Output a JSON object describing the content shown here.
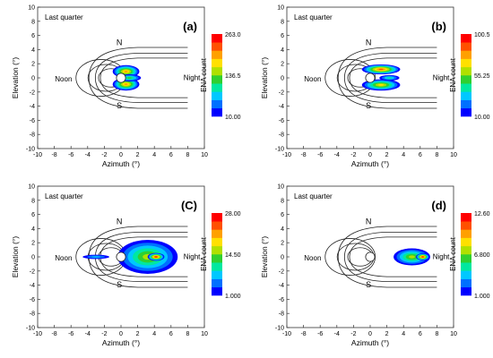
{
  "chart_data": [
    {
      "type": "heatmap",
      "panel_label": "(a)",
      "annotation": "Last quarter",
      "xlabel": "Azimuth (°)",
      "ylabel": "Elevation (°)",
      "xlim": [
        -10,
        10
      ],
      "ylim": [
        -10,
        10
      ],
      "x_ticks": [
        "-10",
        "-8",
        "-6",
        "-4",
        "-2",
        "0",
        "2",
        "4",
        "6",
        "8",
        "10"
      ],
      "y_ticks": [
        "-10",
        "-8",
        "-6",
        "-4",
        "-2",
        "0",
        "2",
        "4",
        "6",
        "8",
        "10"
      ],
      "region_labels": {
        "north": "N",
        "south": "S",
        "noon": "Noon",
        "night": "Night"
      },
      "colorbar": {
        "title": "ENA count",
        "min": 10.0,
        "mid": 136.5,
        "max": 263.0,
        "tick_labels": [
          "263.0",
          "136.5",
          "10.00"
        ]
      },
      "emission_blobs": [
        {
          "cx": 0.6,
          "cy": 0.9,
          "rx": 1.6,
          "ry": 0.9,
          "peak": 0.75
        },
        {
          "cx": 0.6,
          "cy": -0.9,
          "rx": 1.6,
          "ry": 0.9,
          "peak": 0.75
        },
        {
          "cx": 1.0,
          "cy": 0.0,
          "rx": 1.4,
          "ry": 0.5,
          "peak": 0.5
        }
      ]
    },
    {
      "type": "heatmap",
      "panel_label": "(b)",
      "annotation": "Last quarter",
      "xlabel": "Azimuth (°)",
      "ylabel": "Elevation (°)",
      "xlim": [
        -10,
        10
      ],
      "ylim": [
        -10,
        10
      ],
      "x_ticks": [
        "-10",
        "-8",
        "-6",
        "-4",
        "-2",
        "0",
        "2",
        "4",
        "6",
        "8",
        "10"
      ],
      "y_ticks": [
        "-10",
        "-8",
        "-6",
        "-4",
        "-2",
        "0",
        "2",
        "4",
        "6",
        "8",
        "10"
      ],
      "region_labels": {
        "north": "N",
        "south": "S",
        "noon": "Noon",
        "night": "Night"
      },
      "colorbar": {
        "title": "ENA count",
        "min": 10.0,
        "mid": 55.25,
        "max": 100.5,
        "tick_labels": [
          "100.5",
          "55.25",
          "10.00"
        ]
      },
      "emission_blobs": [
        {
          "cx": 1.3,
          "cy": 1.2,
          "rx": 2.3,
          "ry": 0.7,
          "peak": 0.85
        },
        {
          "cx": 1.3,
          "cy": -1.0,
          "rx": 2.3,
          "ry": 0.8,
          "peak": 0.7
        },
        {
          "cx": 2.3,
          "cy": 0.0,
          "rx": 1.2,
          "ry": 0.4,
          "peak": 0.35
        }
      ]
    },
    {
      "type": "heatmap",
      "panel_label": "(C)",
      "annotation": "Last quarter",
      "xlabel": "Azimuth (°)",
      "ylabel": "Elevation (°)",
      "xlim": [
        -10,
        10
      ],
      "ylim": [
        -10,
        10
      ],
      "x_ticks": [
        "-10",
        "-8",
        "-6",
        "-4",
        "-2",
        "0",
        "2",
        "4",
        "6",
        "8",
        "10"
      ],
      "y_ticks": [
        "-10",
        "-8",
        "-6",
        "-4",
        "-2",
        "0",
        "2",
        "4",
        "6",
        "8",
        "10"
      ],
      "region_labels": {
        "north": "N",
        "south": "S",
        "noon": "Noon",
        "night": "Night"
      },
      "colorbar": {
        "title": "ENA count",
        "min": 1.0,
        "mid": 14.5,
        "max": 28.0,
        "tick_labels": [
          "28.00",
          "14.50",
          "1.000"
        ]
      },
      "emission_blobs": [
        {
          "cx": 3.2,
          "cy": 0.0,
          "rx": 3.6,
          "ry": 2.4,
          "peak": 0.55
        },
        {
          "cx": 4.2,
          "cy": 0.0,
          "rx": 1.0,
          "ry": 0.55,
          "peak": 1.0
        },
        {
          "cx": -3.0,
          "cy": 0.0,
          "rx": 1.6,
          "ry": 0.3,
          "peak": 0.3
        }
      ]
    },
    {
      "type": "heatmap",
      "panel_label": "(d)",
      "annotation": "Last quarter",
      "xlabel": "Azimuth (°)",
      "ylabel": "Elevation (°)",
      "xlim": [
        -10,
        10
      ],
      "ylim": [
        -10,
        10
      ],
      "x_ticks": [
        "-10",
        "-8",
        "-6",
        "-4",
        "-2",
        "0",
        "2",
        "4",
        "6",
        "8",
        "10"
      ],
      "y_ticks": [
        "-10",
        "-8",
        "-6",
        "-4",
        "-2",
        "0",
        "2",
        "4",
        "6",
        "8",
        "10"
      ],
      "region_labels": {
        "north": "N",
        "south": "S",
        "noon": "Noon",
        "night": "Night"
      },
      "colorbar": {
        "title": "ENA count",
        "min": 1.0,
        "mid": 6.8,
        "max": 12.6,
        "tick_labels": [
          "12.60",
          "6.800",
          "1.000"
        ]
      },
      "emission_blobs": [
        {
          "cx": 5.0,
          "cy": 0.0,
          "rx": 2.2,
          "ry": 1.2,
          "peak": 0.55
        },
        {
          "cx": 6.3,
          "cy": 0.0,
          "rx": 0.8,
          "ry": 0.5,
          "peak": 1.0
        }
      ]
    }
  ],
  "colormap": [
    "#0000ff",
    "#0070ff",
    "#00c8ff",
    "#00e8a0",
    "#30d030",
    "#b0e000",
    "#ffe000",
    "#ffa000",
    "#ff5000",
    "#ff0000"
  ]
}
